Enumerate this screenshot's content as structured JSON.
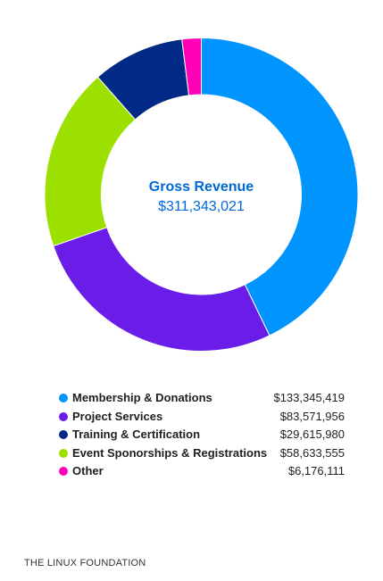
{
  "chart_data": {
    "type": "pie",
    "center_label": {
      "title": "Gross Revenue",
      "value": "$311,343,021"
    },
    "categories": [
      "Membership & Donations",
      "Project Services",
      "Training & Certification",
      "Event Sponorships & Registrations",
      "Other"
    ],
    "values": [
      133345419,
      83571956,
      29615980,
      58633555,
      6176111
    ],
    "display_values": [
      "$133,345,419",
      "$83,571,956",
      "$29,615,980",
      "$58,633,555",
      "$6,176,111"
    ],
    "slice_order": [
      0,
      1,
      3,
      2,
      4
    ],
    "colors": [
      "#0094ff",
      "#6a1de8",
      "#002a85",
      "#9ce000",
      "#ff00b7"
    ],
    "center_text_color": "#0068d6",
    "legend_placement": "bottom"
  },
  "footer": {
    "text": "THE LINUX FOUNDATION"
  }
}
